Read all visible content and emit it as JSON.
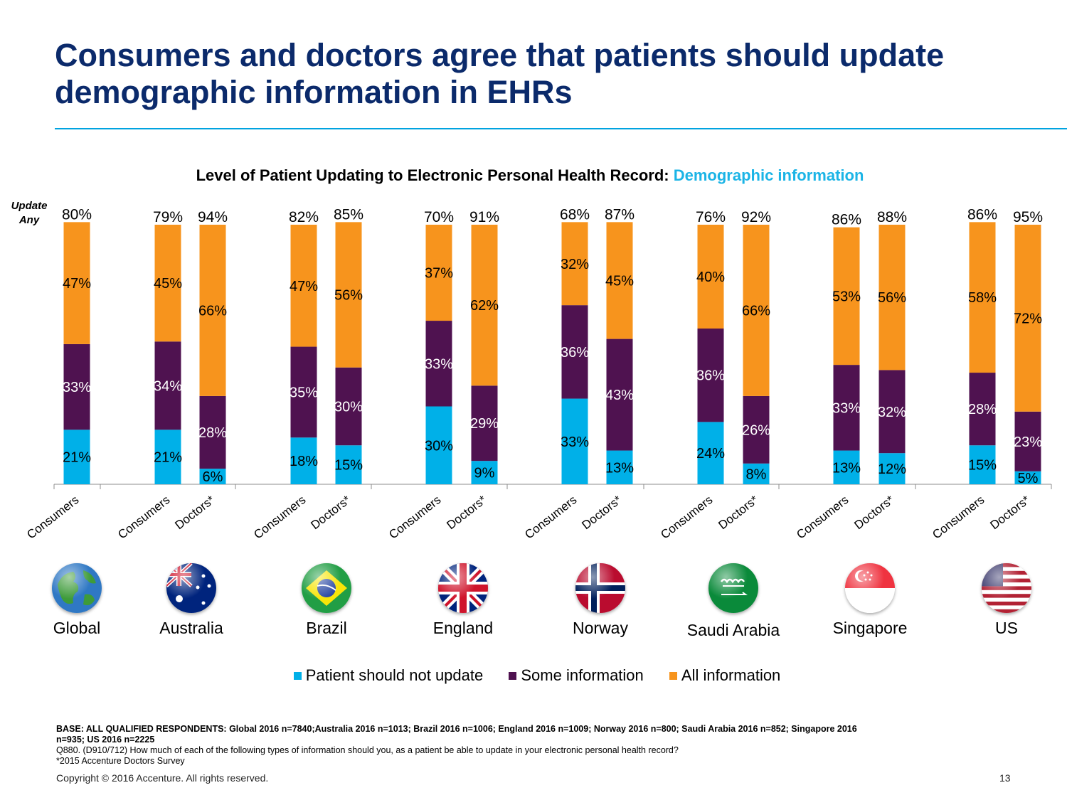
{
  "slide": {
    "title": "Consumers and doctors agree that patients should update demographic information in EHRs",
    "page_number": "13",
    "copyright": "Copyright © 2016 Accenture. All rights reserved."
  },
  "chart_data": {
    "type": "bar",
    "stacked": true,
    "title_prefix": "Level of Patient Updating to Electronic Personal Health Record:",
    "title_highlight": "Demographic information",
    "total_label": "Update Any",
    "ylim": [
      0,
      100
    ],
    "grid": false,
    "legend_position": "bottom",
    "colors": {
      "not_update": "#00b0e8",
      "some": "#4f1250",
      "all": "#f7941d"
    },
    "legend": [
      "Patient should not update",
      "Some information",
      "All information"
    ],
    "groups": [
      {
        "country": "Global",
        "flag": "globe-icon",
        "bars": [
          {
            "label": "Consumers",
            "not_update": 21,
            "some": 33,
            "all": 47,
            "total": "80%"
          }
        ]
      },
      {
        "country": "Australia",
        "flag": "australia-flag-icon",
        "bars": [
          {
            "label": "Consumers",
            "not_update": 21,
            "some": 34,
            "all": 45,
            "total": "79%"
          },
          {
            "label": "Doctors*",
            "not_update": 6,
            "some": 28,
            "all": 66,
            "total": "94%"
          }
        ]
      },
      {
        "country": "Brazil",
        "flag": "brazil-flag-icon",
        "bars": [
          {
            "label": "Consumers",
            "not_update": 18,
            "some": 35,
            "all": 47,
            "total": "82%"
          },
          {
            "label": "Doctors*",
            "not_update": 15,
            "some": 30,
            "all": 56,
            "total": "85%"
          }
        ]
      },
      {
        "country": "England",
        "flag": "england-flag-icon",
        "bars": [
          {
            "label": "Consumers",
            "not_update": 30,
            "some": 33,
            "all": 37,
            "total": "70%"
          },
          {
            "label": "Doctors*",
            "not_update": 9,
            "some": 29,
            "all": 62,
            "total": "91%"
          }
        ]
      },
      {
        "country": "Norway",
        "flag": "norway-flag-icon",
        "bars": [
          {
            "label": "Consumers",
            "not_update": 33,
            "some": 36,
            "all": 32,
            "total": "68%"
          },
          {
            "label": "Doctors*",
            "not_update": 13,
            "some": 43,
            "all": 45,
            "total": "87%"
          }
        ]
      },
      {
        "country": "Saudi Arabia",
        "flag": "saudi-arabia-flag-icon",
        "bars": [
          {
            "label": "Consumers",
            "not_update": 24,
            "some": 36,
            "all": 40,
            "total": "76%"
          },
          {
            "label": "Doctors*",
            "not_update": 8,
            "some": 26,
            "all": 66,
            "total": "92%"
          }
        ]
      },
      {
        "country": "Singapore",
        "flag": "singapore-flag-icon",
        "bars": [
          {
            "label": "Consumers",
            "not_update": 13,
            "some": 33,
            "all": 53,
            "total": "86%"
          },
          {
            "label": "Doctors*",
            "not_update": 12,
            "some": 32,
            "all": 56,
            "total": "88%"
          }
        ]
      },
      {
        "country": "US",
        "flag": "us-flag-icon",
        "bars": [
          {
            "label": "Consumers",
            "not_update": 15,
            "some": 28,
            "all": 58,
            "total": "86%"
          },
          {
            "label": "Doctors*",
            "not_update": 5,
            "some": 23,
            "all": 72,
            "total": "95%"
          }
        ]
      }
    ]
  },
  "notes": {
    "base": "BASE: ALL QUALIFIED RESPONDENTS: Global 2016 n=7840;Australia 2016 n=1013; Brazil 2016 n=1006; England 2016 n=1009; Norway 2016 n=800; Saudi Arabia 2016 n=852; Singapore 2016 n=935; US 2016 n=2225",
    "question": "Q880. (D910/712) How much of each of the following types of information should you, as a patient be able to update in your electronic personal health record?",
    "footnote": "*2015 Accenture Doctors Survey"
  }
}
